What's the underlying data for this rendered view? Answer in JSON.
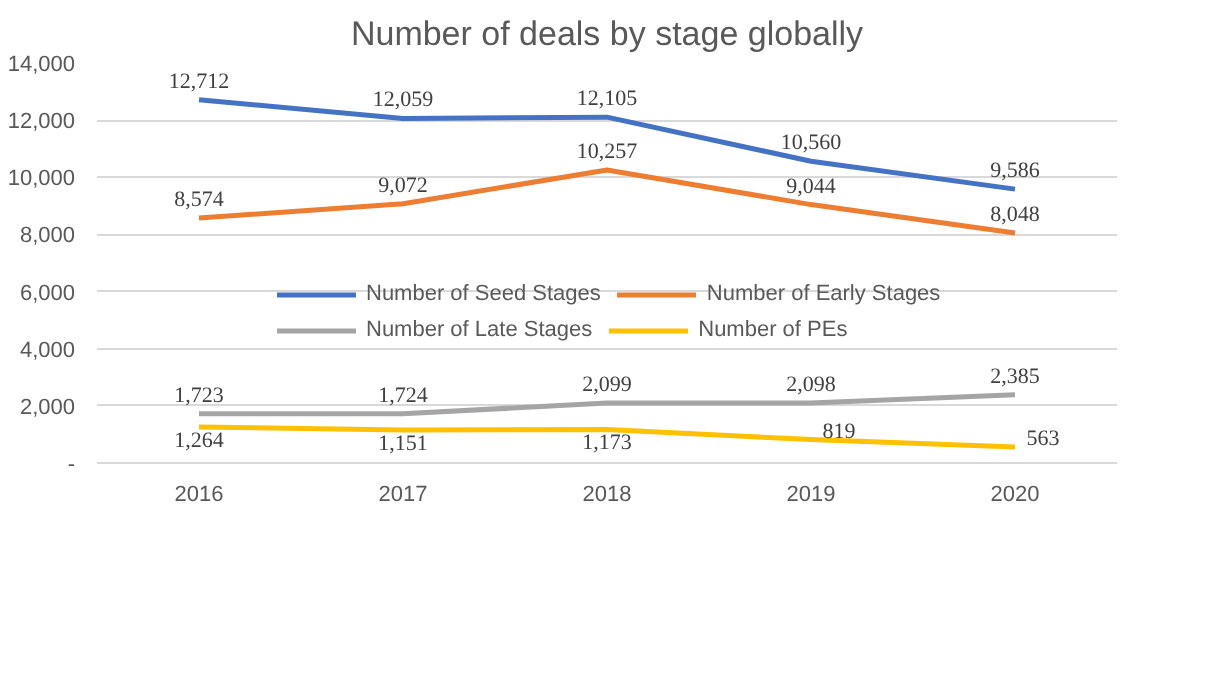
{
  "chart_data": {
    "type": "line",
    "title": "Number of deals by stage globally",
    "categories": [
      "2016",
      "2017",
      "2018",
      "2019",
      "2020"
    ],
    "series": [
      {
        "name": "Number of Seed Stages",
        "color": "#4472c4",
        "values": [
          12712,
          12059,
          12105,
          10560,
          9586
        ],
        "value_labels": [
          "12,712",
          "12,059",
          "12,105",
          "10,560",
          "9,586"
        ]
      },
      {
        "name": "Number of Early Stages",
        "color": "#ed7d31",
        "values": [
          8574,
          9072,
          10257,
          9044,
          8048
        ],
        "value_labels": [
          "8,574",
          "9,072",
          "10,257",
          "9,044",
          "8,048"
        ]
      },
      {
        "name": "Number of Late Stages",
        "color": "#a5a5a5",
        "values": [
          1723,
          1724,
          2099,
          2098,
          2385
        ],
        "value_labels": [
          "1,723",
          "1,724",
          "2,099",
          "2,098",
          "2,385"
        ]
      },
      {
        "name": "Number of PEs",
        "color": "#ffc000",
        "values": [
          1264,
          1151,
          1173,
          819,
          563
        ],
        "value_labels": [
          "1,264",
          "1,151",
          "1,173",
          "819",
          "563"
        ]
      }
    ],
    "ylim": [
      0,
      14000
    ],
    "yticks": [
      {
        "value": 0,
        "label": "-"
      },
      {
        "value": 2000,
        "label": "2,000"
      },
      {
        "value": 4000,
        "label": "4,000"
      },
      {
        "value": 6000,
        "label": "6,000"
      },
      {
        "value": 8000,
        "label": "8,000"
      },
      {
        "value": 10000,
        "label": "10,000"
      },
      {
        "value": 12000,
        "label": "12,000"
      },
      {
        "value": 14000,
        "label": "14,000"
      }
    ],
    "grid": "y",
    "legend": "center",
    "marker": "none",
    "line_style": "solid"
  }
}
